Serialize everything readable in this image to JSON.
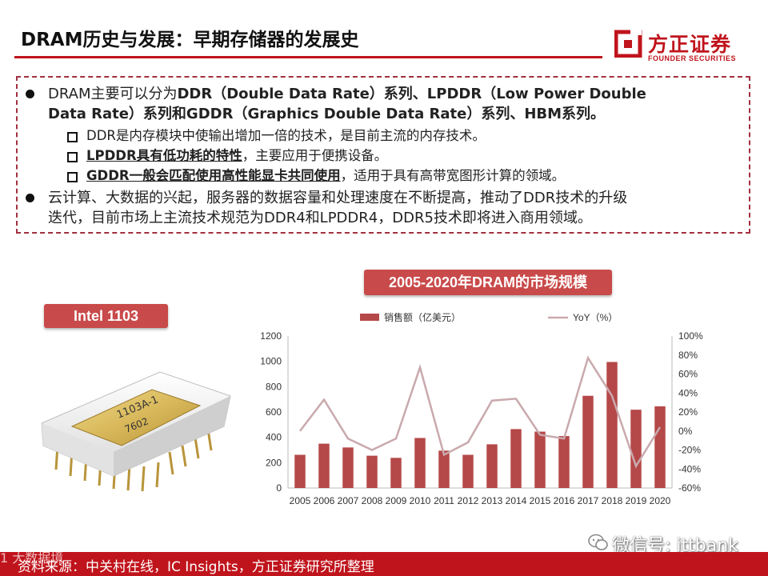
{
  "header": {
    "title": "DRAM历史与发展：早期存储器的发展史",
    "logo_cn": "方正证券",
    "logo_en": "FOUNDER SECURITIES",
    "accent": "#c0141c"
  },
  "bullets": [
    {
      "line1_parts": [
        "DRAM主要可以分为",
        "DDR（Double Data Rate）系列、LPDDR（Low Power Double"
      ],
      "line2": "Data Rate）系列和GDDR（Graphics Double Data Rate）系列、HBM系列。"
    },
    {
      "line1": "云计算、大数据的兴起，服务器的数据容量和处理速度在不断提高，推动了DDR技术的升级",
      "line2": "迭代，目前市场上主流技术规范为DDR4和LPDDR4，DDR5技术即将进入商用领域。"
    }
  ],
  "subitems": [
    {
      "bold": "",
      "text": "DDR是内存模块中使输出增加一倍的技术，是目前主流的内存技术。"
    },
    {
      "bold": "LPDDR具有低功耗的特性",
      "text": "，主要应用于便携设备。"
    },
    {
      "bold": "GDDR一般会匹配使用高性能显卡共同使用",
      "text": "，适用于具有高带宽图形计算的领域。"
    }
  ],
  "chip": {
    "tag": "Intel 1103",
    "marking_1": "1103A-1",
    "marking_2": "7602"
  },
  "chart_tag": "2005-2020年DRAM的市场规模",
  "chart_data": {
    "type": "bar",
    "categories": [
      "2005",
      "2006",
      "2007",
      "2008",
      "2009",
      "2010",
      "2011",
      "2012",
      "2013",
      "2014",
      "2015",
      "2016",
      "2017",
      "2018",
      "2019",
      "2020"
    ],
    "series": [
      {
        "name": "销售额（亿美元）",
        "type": "bar",
        "axis": "left",
        "values": [
          262,
          350,
          320,
          255,
          238,
          395,
          295,
          262,
          345,
          465,
          445,
          410,
          728,
          995,
          618,
          645
        ]
      },
      {
        "name": "YoY（%）",
        "type": "line",
        "axis": "right",
        "values": [
          0,
          33,
          -8,
          -20,
          -8,
          67,
          -25,
          -12,
          32,
          34,
          -4,
          -8,
          77,
          37,
          -37,
          4
        ]
      }
    ],
    "ylim_left": [
      0,
      1200
    ],
    "yticks_left": [
      "0",
      "200",
      "400",
      "600",
      "800",
      "1000",
      "1200"
    ],
    "ylim_right": [
      -60,
      100
    ],
    "yticks_right": [
      "-60%",
      "-40%",
      "-20%",
      "0%",
      "20%",
      "40%",
      "60%",
      "80%",
      "100%"
    ],
    "legend": "top",
    "bar_color": "#b54848",
    "line_color": "#c9a9ad"
  },
  "watermark": {
    "text": "微信号: ittbank"
  },
  "footer": {
    "source": "资料来源：中关村在线，IC Insights，方正证券研究所整理",
    "mark": "1   大数据境"
  }
}
